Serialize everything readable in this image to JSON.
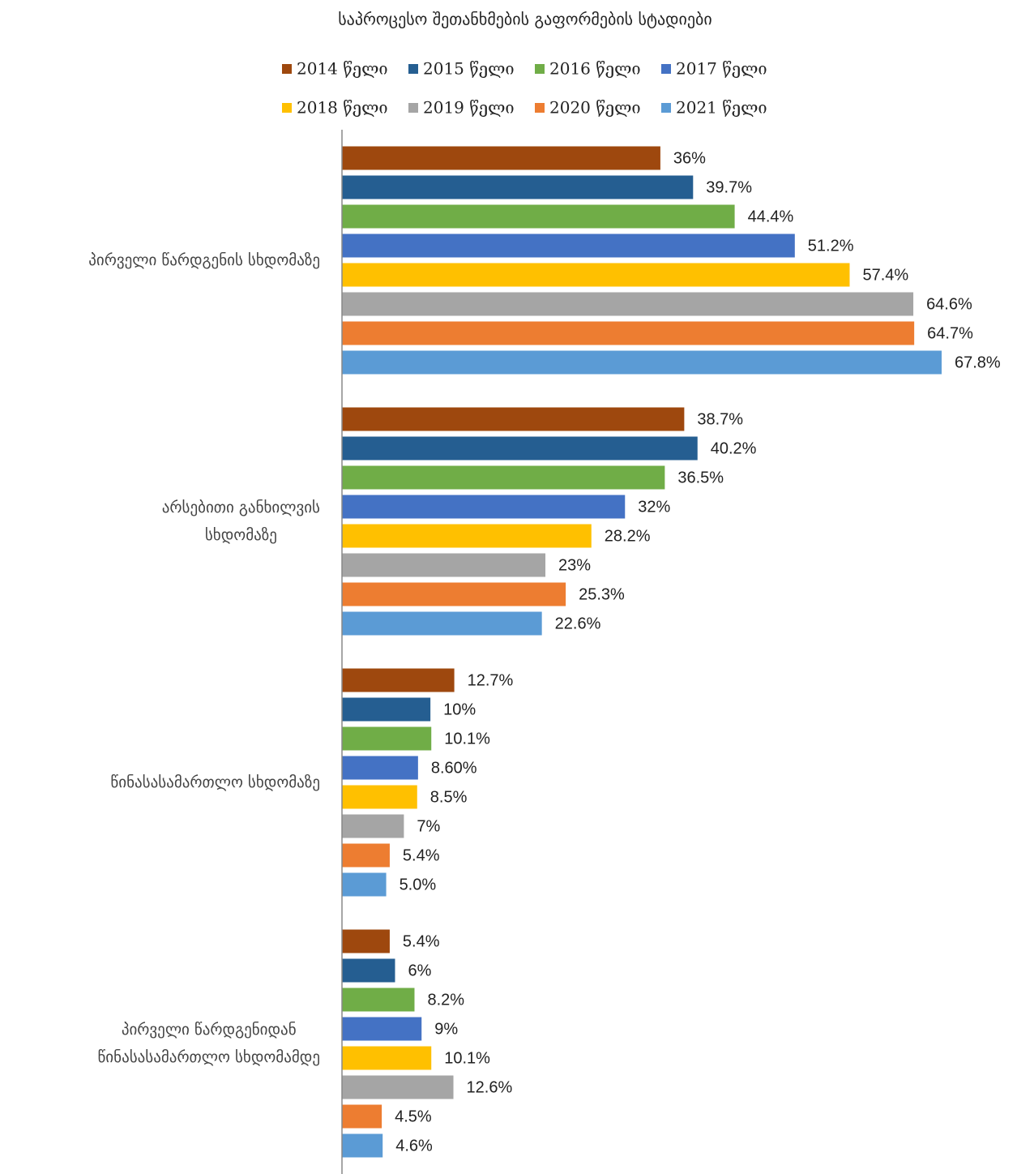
{
  "chart_data": {
    "type": "hbar",
    "title": "საპროცესო შეთანხმების გაფორმების სტადიები",
    "categories": [
      "პირველი წარდგენის სხდომაზე",
      "არსებითი განხილვის\nსხდომაზე",
      "წინასასამართლო სხდომაზე",
      "პირველი წარდგენიდან\nწინასასამართლო სხდომამდე"
    ],
    "xlim": [
      0,
      70
    ],
    "legend": "top",
    "series": [
      {
        "name": "2014 წელი",
        "color": "#9e480e",
        "values": [
          36,
          38.7,
          12.7,
          5.4
        ],
        "value_labels": [
          "36%",
          "38.7%",
          "12.7%",
          "5.4%"
        ]
      },
      {
        "name": "2015 წელი",
        "color": "#255e91",
        "values": [
          39.7,
          40.2,
          10,
          6
        ],
        "value_labels": [
          "39.7%",
          "40.2%",
          "10%",
          "6%"
        ]
      },
      {
        "name": "2016 წელი",
        "color": "#70ad47",
        "values": [
          44.4,
          36.5,
          10.1,
          8.2
        ],
        "value_labels": [
          "44.4%",
          "36.5%",
          "10.1%",
          "8.2%"
        ]
      },
      {
        "name": "2017 წელი",
        "color": "#4472c4",
        "values": [
          51.2,
          32,
          8.6,
          9
        ],
        "value_labels": [
          "51.2%",
          "32%",
          "8.60%",
          "9%"
        ]
      },
      {
        "name": "2018 წელი",
        "color": "#ffc000",
        "values": [
          57.4,
          28.2,
          8.5,
          10.1
        ],
        "value_labels": [
          "57.4%",
          "28.2%",
          "8.5%",
          "10.1%"
        ]
      },
      {
        "name": "2019 წელი",
        "color": "#a5a5a5",
        "values": [
          64.6,
          23,
          7,
          12.6
        ],
        "value_labels": [
          "64.6%",
          "23%",
          "7%",
          "12.6%"
        ]
      },
      {
        "name": "2020 წელი",
        "color": "#ed7d31",
        "values": [
          64.7,
          25.3,
          5.4,
          4.5
        ],
        "value_labels": [
          "64.7%",
          "25.3%",
          "5.4%",
          "4.5%"
        ]
      },
      {
        "name": "2021 წელი",
        "color": "#5b9bd5",
        "values": [
          67.8,
          22.6,
          5.0,
          4.6
        ],
        "value_labels": [
          "67.8%",
          "22.6%",
          "5.0%",
          "4.6%"
        ]
      }
    ]
  }
}
